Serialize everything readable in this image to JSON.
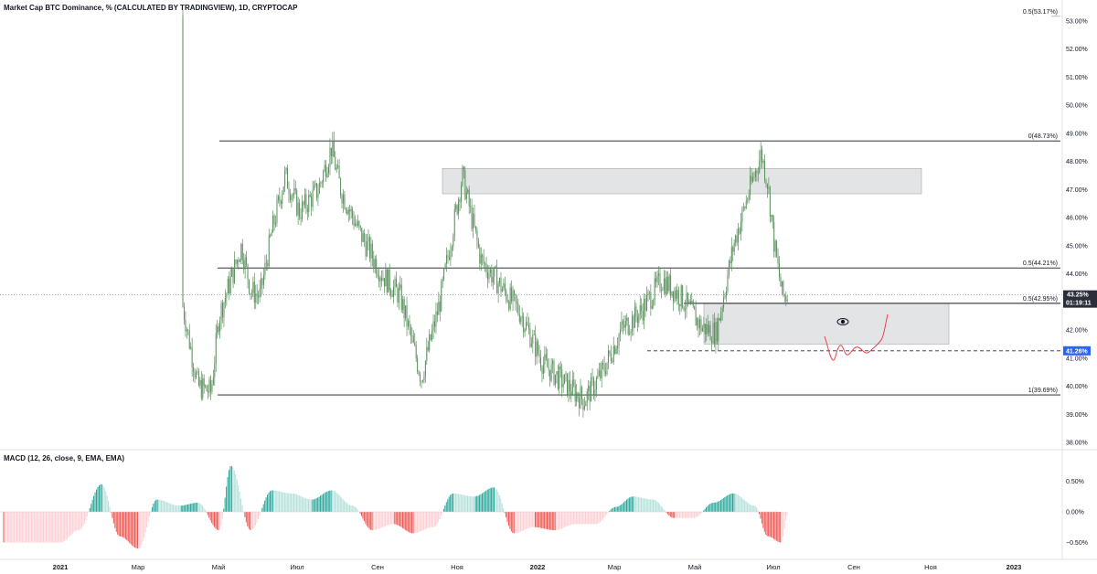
{
  "title": "Market Cap BTC Dominance, % (CALCULATED BY TRADINGVIEW), 1D, CRYPTOCAP",
  "macd_title": "MACD (12, 26, close, 9, EMA, EMA)",
  "price_axis": {
    "ticks": [
      "53.00%",
      "52.00%",
      "51.00%",
      "50.00%",
      "49.00%",
      "48.00%",
      "47.00%",
      "46.00%",
      "45.00%",
      "44.00%",
      "43.00%",
      "42.00%",
      "41.00%",
      "40.00%",
      "39.00%",
      "38.00%"
    ],
    "values": [
      53,
      52,
      51,
      50,
      49,
      48,
      47,
      46,
      45,
      44,
      43,
      42,
      41,
      40,
      39,
      38
    ]
  },
  "macd_axis": {
    "ticks": [
      "0.50%",
      "0.00%",
      "−0.50%"
    ],
    "values": [
      0.5,
      0,
      -0.5
    ]
  },
  "time_axis": {
    "labels": [
      "2021",
      "Мар",
      "Май",
      "Июл",
      "Сен",
      "Ноя",
      "2022",
      "Мар",
      "Май",
      "Июл",
      "Сен",
      "Ноя",
      "2023"
    ],
    "bold": [
      true,
      false,
      false,
      false,
      false,
      false,
      true,
      false,
      false,
      false,
      false,
      false,
      true
    ]
  },
  "fib_levels": [
    {
      "label": "0.5(53.17%)",
      "value": 53.17
    },
    {
      "label": "0(48.73%)",
      "value": 48.73
    },
    {
      "label": "0.5(44.21%)",
      "value": 44.21
    },
    {
      "label": "0.5(42.95%)",
      "value": 42.95
    },
    {
      "label": "1(39.69%)",
      "value": 39.69
    }
  ],
  "current_price": {
    "label": "43.25%",
    "timer": "01:19:11",
    "value": 43.25
  },
  "alert_level": {
    "label": "41.26%",
    "value": 41.26
  },
  "colors": {
    "up": "#26a69a",
    "down": "#ef5350",
    "candle": "#5b8f5e",
    "badge_dark": "#2a2e39",
    "badge_blue": "#2962ff",
    "zone": "#e3e4e6",
    "zone_border": "#9598a1",
    "projection": "#e8424c"
  },
  "icons": {
    "eye": "eye-icon"
  },
  "chart_data": [
    {
      "type": "line",
      "title": "Market Cap BTC Dominance, % (CALCULATED BY TRADINGVIEW), 1D, CRYPTOCAP",
      "x": [
        "2021-01-01",
        "2021-01-15",
        "2021-02-01",
        "2021-02-15",
        "2021-03-01",
        "2021-03-15",
        "2021-04-01",
        "2021-04-15",
        "2021-04-25",
        "2021-05-01",
        "2021-05-10",
        "2021-05-18",
        "2021-05-25",
        "2021-06-01",
        "2021-06-10",
        "2021-06-20",
        "2021-07-01",
        "2021-07-15",
        "2021-07-25",
        "2021-08-01",
        "2021-08-15",
        "2021-09-01",
        "2021-09-15",
        "2021-10-01",
        "2021-10-15",
        "2021-11-01",
        "2021-11-15",
        "2021-12-01",
        "2021-12-15",
        "2022-01-01",
        "2022-01-15",
        "2022-02-01",
        "2022-02-15",
        "2022-03-01",
        "2022-03-15",
        "2022-04-01",
        "2022-04-15",
        "2022-05-01",
        "2022-05-12",
        "2022-05-25",
        "2022-06-05",
        "2022-06-15",
        "2022-06-20",
        "2022-06-25",
        "2022-07-01",
        "2022-07-05"
      ],
      "series": [
        {
          "values": [
            53.2,
            52.2,
            51.0,
            49.6,
            46.5,
            44.8,
            43.5,
            40.0,
            39.8,
            42.5,
            43.8,
            45.0,
            43.4,
            43.2,
            45.5,
            47.5,
            46.2,
            47.0,
            48.5,
            47.0,
            45.5,
            44.0,
            43.2,
            40.3,
            43.0,
            47.5,
            44.5,
            43.5,
            42.6,
            40.8,
            40.2,
            39.5,
            40.5,
            42.0,
            42.6,
            43.8,
            43.2,
            42.1,
            41.9,
            45.0,
            46.8,
            48.3,
            47.2,
            45.0,
            43.2,
            43.25
          ]
        }
      ],
      "ylim": [
        38.0,
        53.3
      ],
      "fib_levels": [
        53.17,
        48.73,
        44.21,
        42.95,
        39.69
      ],
      "alert_level": 41.26
    },
    {
      "type": "bar",
      "title": "MACD (12, 26, close, 9, EMA, EMA)",
      "x": [
        "2021-01-01",
        "2021-01-15",
        "2021-02-01",
        "2021-02-15",
        "2021-03-01",
        "2021-03-15",
        "2021-04-01",
        "2021-04-15",
        "2021-05-01",
        "2021-05-10",
        "2021-05-25",
        "2021-06-10",
        "2021-06-25",
        "2021-07-10",
        "2021-07-25",
        "2021-08-10",
        "2021-08-25",
        "2021-09-10",
        "2021-09-25",
        "2021-10-10",
        "2021-10-25",
        "2021-11-10",
        "2021-11-25",
        "2021-12-10",
        "2021-12-25",
        "2022-01-10",
        "2022-01-25",
        "2022-02-10",
        "2022-02-25",
        "2022-03-10",
        "2022-03-25",
        "2022-04-10",
        "2022-04-25",
        "2022-05-10",
        "2022-05-25",
        "2022-06-10",
        "2022-06-20",
        "2022-06-30",
        "2022-07-05"
      ],
      "series": [
        {
          "values": [
            -0.5,
            -0.3,
            0.45,
            -0.4,
            -0.6,
            0.2,
            0.1,
            0.15,
            -0.3,
            0.75,
            -0.3,
            0.35,
            0.3,
            0.2,
            0.35,
            0.1,
            -0.3,
            -0.2,
            -0.35,
            -0.25,
            0.3,
            0.25,
            0.4,
            -0.35,
            -0.25,
            -0.3,
            -0.2,
            -0.2,
            0.08,
            0.25,
            0.2,
            -0.1,
            -0.1,
            0.15,
            0.3,
            0.1,
            -0.4,
            -0.5,
            -0.05
          ]
        }
      ],
      "ylim": [
        -0.65,
        0.85
      ]
    }
  ]
}
